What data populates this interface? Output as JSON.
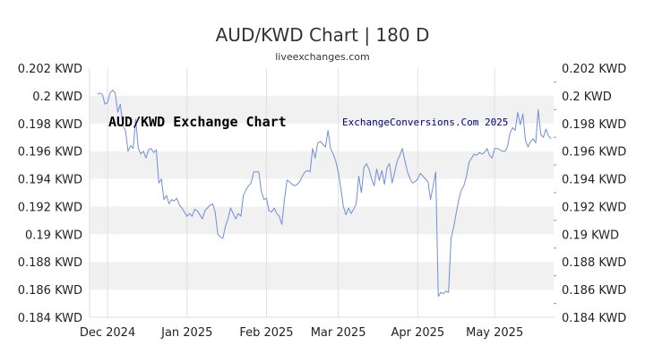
{
  "chart_data": {
    "type": "line",
    "title": "AUD/KWD Chart | 180 D",
    "subtitle": "liveexchanges.com",
    "watermarks": [
      "AUD/KWD Exchange Chart",
      "ExchangeConversions.Com 2025"
    ],
    "y_tick_labels": [
      "0.202 KWD",
      "0.2 KWD",
      "0.198 KWD",
      "0.196 KWD",
      "0.194 KWD",
      "0.192 KWD",
      "0.19 KWD",
      "0.188 KWD",
      "0.186 KWD",
      "0.184 KWD"
    ],
    "y_tick_labels_right": [
      "0.202 KWD",
      "0.2 KWD",
      "0.198 KWD",
      "0.196 KWD",
      "0.194 KWD",
      "0.192 KWD",
      "0.19 KWD",
      "0.188 KWD",
      "0.186 KWD",
      "0.184 KWD"
    ],
    "x_tick_labels": [
      "Dec 2024",
      "Jan 2025",
      "Feb 2025",
      "Mar 2025",
      "Apr 2025",
      "May 2025"
    ],
    "ylim": [
      0.184,
      0.202
    ],
    "xlim": [
      "2024-11-24",
      "2025-05-24"
    ],
    "grid": true,
    "series": [
      {
        "color": "#6f8fd6",
        "points": [
          [
            "2024-11-27",
            0.2001
          ],
          [
            "2024-11-28",
            0.2002
          ],
          [
            "2024-11-29",
            0.2001
          ],
          [
            "2024-11-30",
            0.1994
          ],
          [
            "2024-12-01",
            0.1995
          ],
          [
            "2024-12-02",
            0.2002
          ],
          [
            "2024-12-03",
            0.2004
          ],
          [
            "2024-12-04",
            0.2002
          ],
          [
            "2024-12-05",
            0.1988
          ],
          [
            "2024-12-06",
            0.1994
          ],
          [
            "2024-12-07",
            0.1978
          ],
          [
            "2024-12-08",
            0.1975
          ],
          [
            "2024-12-09",
            0.196
          ],
          [
            "2024-12-10",
            0.1964
          ],
          [
            "2024-12-11",
            0.1962
          ],
          [
            "2024-12-12",
            0.1983
          ],
          [
            "2024-12-13",
            0.1962
          ],
          [
            "2024-12-14",
            0.1958
          ],
          [
            "2024-12-15",
            0.196
          ],
          [
            "2024-12-16",
            0.1955
          ],
          [
            "2024-12-17",
            0.1961
          ],
          [
            "2024-12-18",
            0.1962
          ],
          [
            "2024-12-19",
            0.1959
          ],
          [
            "2024-12-20",
            0.1961
          ],
          [
            "2024-12-21",
            0.1937
          ],
          [
            "2024-12-22",
            0.194
          ],
          [
            "2024-12-23",
            0.1925
          ],
          [
            "2024-12-24",
            0.1928
          ],
          [
            "2024-12-25",
            0.1922
          ],
          [
            "2024-12-26",
            0.1925
          ],
          [
            "2024-12-27",
            0.1924
          ],
          [
            "2024-12-28",
            0.1926
          ],
          [
            "2024-12-29",
            0.1921
          ],
          [
            "2024-12-30",
            0.1919
          ],
          [
            "2024-12-31",
            0.1916
          ],
          [
            "2025-01-01",
            0.1913
          ],
          [
            "2025-01-02",
            0.1915
          ],
          [
            "2025-01-03",
            0.1913
          ],
          [
            "2025-01-04",
            0.1918
          ],
          [
            "2025-01-05",
            0.1917
          ],
          [
            "2025-01-06",
            0.1914
          ],
          [
            "2025-01-07",
            0.1911
          ],
          [
            "2025-01-08",
            0.1917
          ],
          [
            "2025-01-09",
            0.1919
          ],
          [
            "2025-01-10",
            0.1921
          ],
          [
            "2025-01-11",
            0.1922
          ],
          [
            "2025-01-12",
            0.1916
          ],
          [
            "2025-01-13",
            0.19
          ],
          [
            "2025-01-14",
            0.1898
          ],
          [
            "2025-01-15",
            0.1897
          ],
          [
            "2025-01-16",
            0.1906
          ],
          [
            "2025-01-17",
            0.1911
          ],
          [
            "2025-01-18",
            0.1919
          ],
          [
            "2025-01-19",
            0.1915
          ],
          [
            "2025-01-20",
            0.1911
          ],
          [
            "2025-01-21",
            0.1915
          ],
          [
            "2025-01-22",
            0.1913
          ],
          [
            "2025-01-23",
            0.1928
          ],
          [
            "2025-01-24",
            0.1932
          ],
          [
            "2025-01-25",
            0.1935
          ],
          [
            "2025-01-26",
            0.1937
          ],
          [
            "2025-01-27",
            0.1945
          ],
          [
            "2025-01-28",
            0.1945
          ],
          [
            "2025-01-29",
            0.1945
          ],
          [
            "2025-01-30",
            0.1931
          ],
          [
            "2025-01-31",
            0.1925
          ],
          [
            "2025-02-01",
            0.1926
          ],
          [
            "2025-02-02",
            0.1917
          ],
          [
            "2025-02-03",
            0.1916
          ],
          [
            "2025-02-04",
            0.1919
          ],
          [
            "2025-02-05",
            0.1915
          ],
          [
            "2025-02-06",
            0.1913
          ],
          [
            "2025-02-07",
            0.1907
          ],
          [
            "2025-02-08",
            0.1925
          ],
          [
            "2025-02-09",
            0.1939
          ],
          [
            "2025-02-10",
            0.1938
          ],
          [
            "2025-02-11",
            0.1936
          ],
          [
            "2025-02-12",
            0.1935
          ],
          [
            "2025-02-13",
            0.1936
          ],
          [
            "2025-02-14",
            0.1938
          ],
          [
            "2025-02-15",
            0.1942
          ],
          [
            "2025-02-16",
            0.1945
          ],
          [
            "2025-02-17",
            0.1946
          ],
          [
            "2025-02-18",
            0.1945
          ],
          [
            "2025-02-19",
            0.1962
          ],
          [
            "2025-02-20",
            0.1955
          ],
          [
            "2025-02-21",
            0.1966
          ],
          [
            "2025-02-22",
            0.1967
          ],
          [
            "2025-02-23",
            0.1965
          ],
          [
            "2025-02-24",
            0.1963
          ],
          [
            "2025-02-25",
            0.1975
          ],
          [
            "2025-02-26",
            0.1962
          ],
          [
            "2025-02-27",
            0.1958
          ],
          [
            "2025-02-28",
            0.1953
          ],
          [
            "2025-03-01",
            0.1945
          ],
          [
            "2025-03-02",
            0.1933
          ],
          [
            "2025-03-03",
            0.192
          ],
          [
            "2025-03-04",
            0.1914
          ],
          [
            "2025-03-05",
            0.1919
          ],
          [
            "2025-03-06",
            0.1915
          ],
          [
            "2025-03-07",
            0.1918
          ],
          [
            "2025-03-08",
            0.1922
          ],
          [
            "2025-03-09",
            0.1942
          ],
          [
            "2025-03-10",
            0.193
          ],
          [
            "2025-03-11",
            0.1948
          ],
          [
            "2025-03-12",
            0.1951
          ],
          [
            "2025-03-13",
            0.1947
          ],
          [
            "2025-03-14",
            0.194
          ],
          [
            "2025-03-15",
            0.1935
          ],
          [
            "2025-03-16",
            0.1947
          ],
          [
            "2025-03-17",
            0.1939
          ],
          [
            "2025-03-18",
            0.1946
          ],
          [
            "2025-03-19",
            0.1936
          ],
          [
            "2025-03-20",
            0.1948
          ],
          [
            "2025-03-21",
            0.1951
          ],
          [
            "2025-03-22",
            0.1937
          ],
          [
            "2025-03-23",
            0.1945
          ],
          [
            "2025-03-24",
            0.1953
          ],
          [
            "2025-03-25",
            0.1957
          ],
          [
            "2025-03-26",
            0.1962
          ],
          [
            "2025-03-27",
            0.1953
          ],
          [
            "2025-03-28",
            0.1945
          ],
          [
            "2025-03-29",
            0.194
          ],
          [
            "2025-03-30",
            0.1937
          ],
          [
            "2025-03-31",
            0.1938
          ],
          [
            "2025-04-01",
            0.194
          ],
          [
            "2025-04-02",
            0.1944
          ],
          [
            "2025-04-03",
            0.1942
          ],
          [
            "2025-04-04",
            0.194
          ],
          [
            "2025-04-05",
            0.1938
          ],
          [
            "2025-04-06",
            0.1925
          ],
          [
            "2025-04-07",
            0.1935
          ],
          [
            "2025-04-08",
            0.1945
          ],
          [
            "2025-04-09",
            0.1855
          ],
          [
            "2025-04-10",
            0.1858
          ],
          [
            "2025-04-11",
            0.1857
          ],
          [
            "2025-04-12",
            0.1859
          ],
          [
            "2025-04-13",
            0.1858
          ],
          [
            "2025-04-14",
            0.1897
          ],
          [
            "2025-04-15",
            0.1905
          ],
          [
            "2025-04-16",
            0.1915
          ],
          [
            "2025-04-17",
            0.1925
          ],
          [
            "2025-04-18",
            0.1932
          ],
          [
            "2025-04-19",
            0.1935
          ],
          [
            "2025-04-20",
            0.1942
          ],
          [
            "2025-04-21",
            0.1952
          ],
          [
            "2025-04-22",
            0.1955
          ],
          [
            "2025-04-23",
            0.1958
          ],
          [
            "2025-04-24",
            0.1957
          ],
          [
            "2025-04-25",
            0.1959
          ],
          [
            "2025-04-26",
            0.1958
          ],
          [
            "2025-04-27",
            0.1959
          ],
          [
            "2025-04-28",
            0.1962
          ],
          [
            "2025-04-29",
            0.1957
          ],
          [
            "2025-04-30",
            0.1955
          ],
          [
            "2025-05-01",
            0.1962
          ],
          [
            "2025-05-02",
            0.1962
          ],
          [
            "2025-05-03",
            0.1961
          ],
          [
            "2025-05-04",
            0.196
          ],
          [
            "2025-05-05",
            0.196
          ],
          [
            "2025-05-06",
            0.1963
          ],
          [
            "2025-05-07",
            0.1973
          ],
          [
            "2025-05-08",
            0.1977
          ],
          [
            "2025-05-09",
            0.1975
          ],
          [
            "2025-05-10",
            0.1988
          ],
          [
            "2025-05-11",
            0.1979
          ],
          [
            "2025-05-12",
            0.1987
          ],
          [
            "2025-05-13",
            0.1968
          ],
          [
            "2025-05-14",
            0.1963
          ],
          [
            "2025-05-15",
            0.1967
          ],
          [
            "2025-05-16",
            0.1969
          ],
          [
            "2025-05-17",
            0.1966
          ],
          [
            "2025-05-18",
            0.199
          ],
          [
            "2025-05-19",
            0.1972
          ],
          [
            "2025-05-20",
            0.197
          ],
          [
            "2025-05-21",
            0.1976
          ],
          [
            "2025-05-22",
            0.1971
          ],
          [
            "2025-05-23",
            0.1969
          ]
        ]
      }
    ]
  }
}
